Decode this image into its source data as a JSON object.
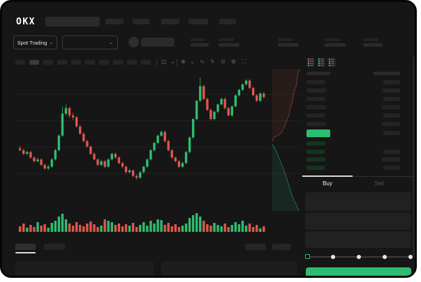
{
  "colors": {
    "up_green": "#2ebd70",
    "down_red": "#dd574c",
    "accent_green": "#2cbe70",
    "bid_row_green": "#14351f",
    "tab_indicator": "#d9d9d9"
  },
  "header": {
    "logo": "OKX",
    "nav_placeholder_count": 5
  },
  "subheader": {
    "market_selector_label": "Spot Trading",
    "chevron": "⌄",
    "pair_selector_chevron": "⌄",
    "stat_placeholder_count": 5
  },
  "chart_toolbar": {
    "timeframe_placeholder_count": 10,
    "active_timeframe_index": 1,
    "icons": [
      {
        "name": "candle-style-icon",
        "glyph": "◫"
      },
      {
        "name": "chevron-down-icon",
        "glyph": "⌄"
      },
      {
        "name": "indicators-icon",
        "glyph": "⊕"
      },
      {
        "name": "chevron-down-icon",
        "glyph": "⌄"
      },
      {
        "name": "line-type-icon",
        "glyph": "∿"
      },
      {
        "name": "draw-icon",
        "glyph": "✎"
      },
      {
        "name": "screenshot-icon",
        "glyph": "⊙"
      },
      {
        "name": "settings-icon",
        "glyph": "⚙"
      },
      {
        "name": "fullscreen-icon",
        "glyph": "⛶"
      }
    ]
  },
  "order_book": {
    "view_toggles": [
      "combined",
      "buys",
      "sells"
    ],
    "ask_rows": 6,
    "bid_rows": 4,
    "bid_amount_rows": 3,
    "last_price_direction": "up"
  },
  "trade_form": {
    "tabs": {
      "buy": "Buy",
      "sell": "Sell",
      "active": "buy"
    },
    "input_row_count": 3,
    "slider_stop_count": 5,
    "slider_active_index": 0
  },
  "bottom_bar": {
    "left_tab_count": 2,
    "active_left_tab": 0,
    "right_tab_count": 2,
    "panel_count": 2
  },
  "chart_data": [
    {
      "type": "candlestick",
      "title": "",
      "x_axis": "time (70 bars, placeholder timeframe)",
      "price_range": [
        33,
        95
      ],
      "grid": "horizontal",
      "up_color": "#2ebd70",
      "down_color": "#dd574c",
      "candles": [
        [
          55,
          56.5,
          53.5,
          54
        ],
        [
          54,
          54.8,
          51.5,
          52
        ],
        [
          52,
          53.8,
          51.3,
          53
        ],
        [
          53,
          53.6,
          49.4,
          50
        ],
        [
          50,
          50.8,
          47.2,
          48
        ],
        [
          48,
          50,
          47.3,
          49
        ],
        [
          49,
          49.6,
          45.4,
          46
        ],
        [
          46,
          46.8,
          43.5,
          44
        ],
        [
          44,
          46,
          43.2,
          45
        ],
        [
          45,
          49.7,
          44.5,
          49
        ],
        [
          49,
          54.8,
          48.4,
          54
        ],
        [
          54,
          62.7,
          53.3,
          62
        ],
        [
          62,
          78,
          61.2,
          74
        ],
        [
          74,
          79,
          73,
          77
        ],
        [
          77,
          77.8,
          71.5,
          73
        ],
        [
          73,
          74.5,
          70.5,
          72
        ],
        [
          72,
          72.6,
          66.3,
          67
        ],
        [
          67,
          67.9,
          62.4,
          63
        ],
        [
          63,
          63.8,
          58.2,
          59
        ],
        [
          59,
          59.7,
          55.4,
          56
        ],
        [
          56,
          56.6,
          51.3,
          52
        ],
        [
          52,
          52.8,
          48.3,
          49
        ],
        [
          49,
          49.6,
          45.2,
          46
        ],
        [
          46,
          48.8,
          45.4,
          48
        ],
        [
          48,
          48.7,
          44.3,
          45
        ],
        [
          45,
          49.6,
          44.5,
          49
        ],
        [
          49,
          52.7,
          48.4,
          52
        ],
        [
          52,
          52.8,
          49.3,
          50
        ],
        [
          50,
          50.7,
          46.4,
          47
        ],
        [
          47,
          47.8,
          44.3,
          45
        ],
        [
          45,
          45.7,
          41.3,
          42
        ],
        [
          42,
          43.8,
          41.2,
          43
        ],
        [
          43,
          43.6,
          39.4,
          40
        ],
        [
          40,
          40.8,
          37.8,
          39
        ],
        [
          39,
          42.7,
          38.4,
          42
        ],
        [
          42,
          45.6,
          41.3,
          45
        ],
        [
          45,
          49.5,
          44.4,
          49
        ],
        [
          49,
          54.6,
          48.4,
          54
        ],
        [
          54,
          58.7,
          53.3,
          58
        ],
        [
          58,
          62.6,
          57.4,
          62
        ],
        [
          62,
          64.8,
          61.2,
          64
        ],
        [
          64,
          64.9,
          58.2,
          59
        ],
        [
          59,
          59.8,
          53.4,
          54
        ],
        [
          54,
          54.7,
          49.3,
          50
        ],
        [
          50,
          50.6,
          47.4,
          48
        ],
        [
          48,
          48.8,
          44.3,
          45
        ],
        [
          45,
          47.7,
          44.4,
          47
        ],
        [
          47,
          53.6,
          46.5,
          53
        ],
        [
          53,
          61.5,
          52.4,
          61
        ],
        [
          61,
          71.6,
          60.3,
          71
        ],
        [
          71,
          81.5,
          70.4,
          81
        ],
        [
          81,
          93.5,
          80.3,
          89
        ],
        [
          89,
          89.8,
          81.3,
          82
        ],
        [
          82,
          82.7,
          75.4,
          76
        ],
        [
          76,
          76.6,
          70.3,
          71
        ],
        [
          71,
          75.6,
          70.4,
          75
        ],
        [
          75,
          79.5,
          74.3,
          79
        ],
        [
          79,
          82.6,
          78.4,
          82
        ],
        [
          82,
          82.8,
          76.3,
          77
        ],
        [
          77,
          77.7,
          72.4,
          73
        ],
        [
          73,
          78.6,
          72.3,
          78
        ],
        [
          78,
          84.5,
          77.4,
          84
        ],
        [
          84,
          87.6,
          83.3,
          87
        ],
        [
          87,
          90.5,
          86.4,
          90
        ],
        [
          90,
          92.8,
          89.3,
          92
        ],
        [
          92,
          92.9,
          87.3,
          88
        ],
        [
          88,
          88.7,
          83.4,
          84
        ],
        [
          84,
          84.6,
          80.3,
          81
        ],
        [
          81,
          85.5,
          80.4,
          85
        ],
        [
          85,
          85.8,
          82.2,
          83
        ]
      ],
      "volume": [
        8,
        12,
        6,
        10,
        7,
        14,
        9,
        11,
        6,
        13,
        16,
        22,
        26,
        18,
        12,
        9,
        14,
        10,
        8,
        12,
        15,
        11,
        7,
        9,
        18,
        16,
        14,
        10,
        12,
        8,
        11,
        9,
        13,
        7,
        10,
        14,
        9,
        16,
        12,
        18,
        17,
        10,
        13,
        8,
        11,
        7,
        9,
        12,
        20,
        24,
        27,
        22,
        16,
        11,
        9,
        13,
        10,
        8,
        12,
        7,
        10,
        14,
        11,
        16,
        9,
        12,
        7,
        10,
        5,
        8
      ]
    },
    {
      "type": "area",
      "subtype": "market-depth",
      "orientation": "vertical",
      "ask_color": "#dd5a4e",
      "bid_color": "#3ec996",
      "asks_line": [
        [
          5,
          104
        ],
        [
          8,
          98
        ],
        [
          12,
          96
        ],
        [
          18,
          92
        ],
        [
          22,
          84
        ],
        [
          26,
          74
        ],
        [
          29,
          66
        ],
        [
          31,
          56
        ],
        [
          34,
          46
        ],
        [
          36,
          34
        ],
        [
          40,
          22
        ],
        [
          41,
          10
        ],
        [
          44,
          0
        ]
      ],
      "bids_line": [
        [
          5,
          108
        ],
        [
          10,
          116
        ],
        [
          14,
          126
        ],
        [
          18,
          136
        ],
        [
          22,
          146
        ],
        [
          26,
          158
        ],
        [
          29,
          168
        ],
        [
          32,
          178
        ],
        [
          36,
          188
        ],
        [
          40,
          196
        ],
        [
          43,
          204
        ]
      ]
    }
  ]
}
